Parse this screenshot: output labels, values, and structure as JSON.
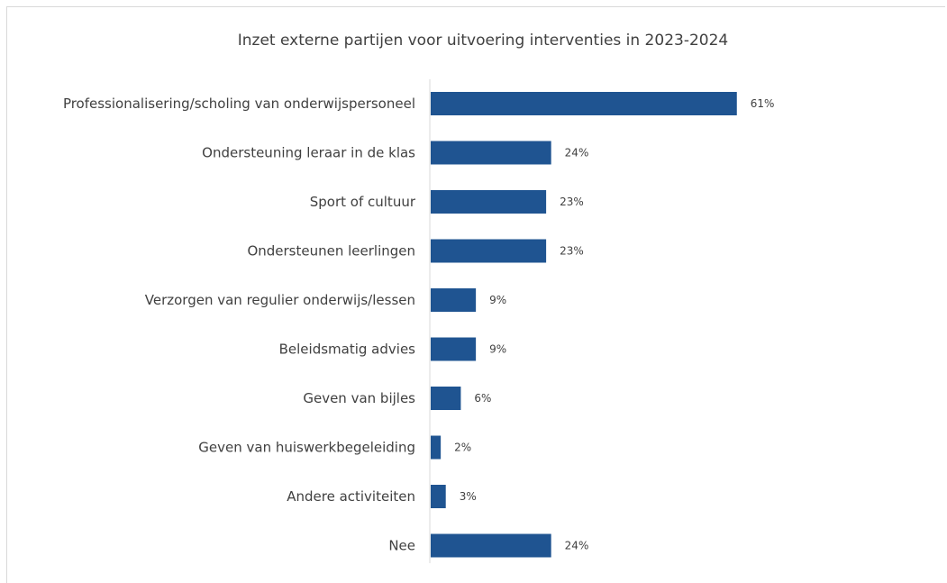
{
  "chart_data": {
    "type": "bar",
    "orientation": "horizontal",
    "title": "Inzet externe partijen voor uitvoering interventies in 2023-2024",
    "categories": [
      "Professionalisering/scholing van onderwijspersoneel",
      "Ondersteuning leraar in de klas",
      "Sport of cultuur",
      "Ondersteunen leerlingen",
      "Verzorgen van regulier onderwijs/lessen",
      "Beleidsmatig advies",
      "Geven van bijles",
      "Geven van huiswerkbegeleiding",
      "Andere activiteiten",
      "Nee"
    ],
    "values": [
      61,
      24,
      23,
      23,
      9,
      9,
      6,
      2,
      3,
      24
    ],
    "value_labels": [
      "61%",
      "24%",
      "23%",
      "23%",
      "9%",
      "9%",
      "6%",
      "2%",
      "3%",
      "24%"
    ],
    "unit": "%",
    "color": "#1f5491",
    "grid": false,
    "legend": "none"
  }
}
